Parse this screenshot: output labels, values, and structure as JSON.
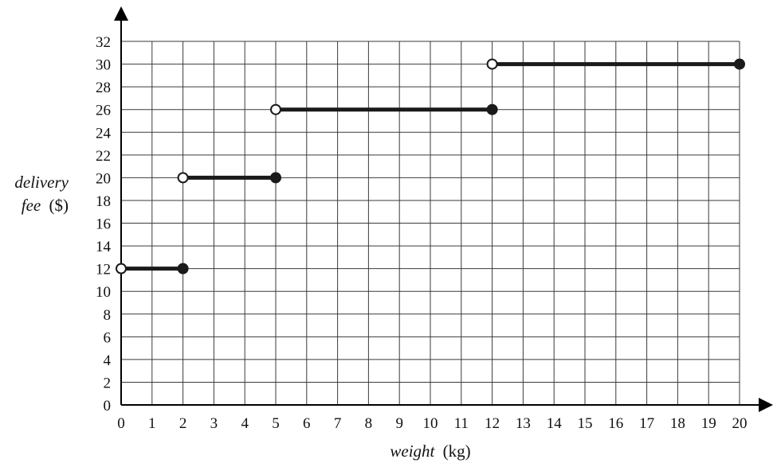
{
  "chart_data": {
    "type": "line",
    "title": "",
    "xlabel_italic": "weight",
    "xlabel_unit": "(kg)",
    "ylabel_line1": "delivery",
    "ylabel_italic2": "fee",
    "ylabel_unit": "($)",
    "xlim": [
      0,
      20
    ],
    "ylim": [
      0,
      32
    ],
    "grid": true,
    "x_gridlines": [
      0,
      1,
      2,
      3,
      4,
      5,
      6,
      7,
      8,
      9,
      10,
      11,
      12,
      13,
      14,
      15,
      16,
      17,
      18,
      19,
      20
    ],
    "y_gridlines": [
      0,
      2,
      4,
      6,
      8,
      10,
      12,
      14,
      16,
      18,
      20,
      22,
      24,
      26,
      28,
      30,
      32
    ],
    "x_ticks": [
      "0",
      "1",
      "2",
      "3",
      "4",
      "5",
      "6",
      "7",
      "8",
      "9",
      "10",
      "11",
      "12",
      "13",
      "14",
      "15",
      "16",
      "17",
      "18",
      "19",
      "20"
    ],
    "y_ticks": [
      "0",
      "2",
      "4",
      "6",
      "8",
      "10",
      "12",
      "14",
      "16",
      "18",
      "20",
      "22",
      "24",
      "26",
      "28",
      "30",
      "32"
    ],
    "segments": [
      {
        "x_start": 0,
        "x_end": 2,
        "y": 12,
        "start_closed": false,
        "end_closed": true
      },
      {
        "x_start": 2,
        "x_end": 5,
        "y": 20,
        "start_closed": false,
        "end_closed": true
      },
      {
        "x_start": 5,
        "x_end": 12,
        "y": 26,
        "start_closed": false,
        "end_closed": true
      },
      {
        "x_start": 12,
        "x_end": 20,
        "y": 30,
        "start_closed": false,
        "end_closed": true
      }
    ],
    "colors": {
      "line": "#1a1a1a",
      "grid": "#3a3a3a",
      "axis": "#000000"
    }
  }
}
